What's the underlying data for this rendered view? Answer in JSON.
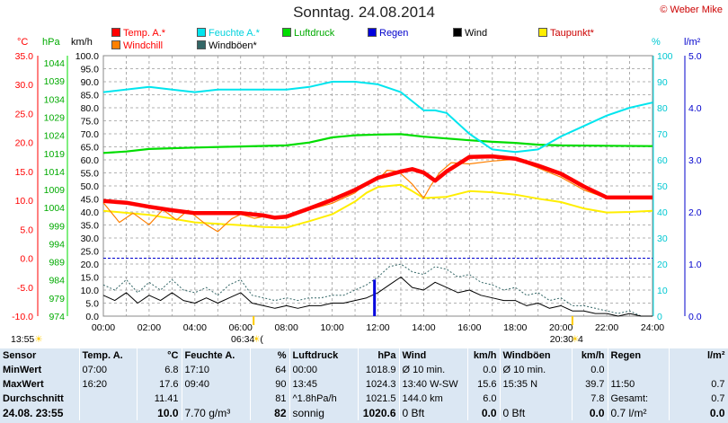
{
  "header": {
    "title": "Sonntag. 24.08.2014",
    "copyright": "© Weber Mike"
  },
  "legend": [
    {
      "label": "Temp. A.*",
      "color": "#ff0000"
    },
    {
      "label": "Feuchte A.*",
      "color": "#00e5ee"
    },
    {
      "label": "Luftdruck",
      "color": "#00dd00"
    },
    {
      "label": "Regen",
      "color": "#0000dd"
    },
    {
      "label": "Wind",
      "color": "#000000"
    },
    {
      "label": "Taupunkt*",
      "color": "#ffee00"
    },
    {
      "label": "Windchill",
      "color": "#ff8000"
    },
    {
      "label": "Windböen*",
      "color": "#336666"
    }
  ],
  "units": {
    "temp": "°C",
    "pressure": "hPa",
    "wind": "km/h",
    "humidity": "%",
    "rain": "l/m²"
  },
  "chart_data": {
    "type": "line",
    "x_ticks": [
      "00:00",
      "02:00",
      "04:00",
      "06:00",
      "08:00",
      "10:00",
      "12:00",
      "14:00",
      "16:00",
      "18:00",
      "20:00",
      "22:00",
      "24:00"
    ],
    "xlim": [
      "00:00",
      "24:00"
    ],
    "axes": {
      "temp": {
        "unit": "°C",
        "ylim": [
          -10,
          35
        ],
        "ticks": [
          "35.0",
          "30.0",
          "25.0",
          "20.0",
          "15.0",
          "10.0",
          "5.0",
          "0.0",
          "-5.0",
          "-10.0"
        ]
      },
      "pressure": {
        "unit": "hPa",
        "ylim": [
          974,
          1046
        ],
        "ticks": [
          "1044",
          "1039",
          "1034",
          "1029",
          "1024",
          "1019",
          "1014",
          "1009",
          "1004",
          "999",
          "994",
          "989",
          "984",
          "979",
          "974"
        ]
      },
      "wind": {
        "unit": "km/h",
        "ylim": [
          0,
          100
        ],
        "ticks": [
          "100.0",
          "95.0",
          "90.0",
          "85.0",
          "80.0",
          "75.0",
          "70.0",
          "65.0",
          "60.0",
          "55.0",
          "50.0",
          "45.0",
          "40.0",
          "35.0",
          "30.0",
          "25.0",
          "20.0",
          "15.0",
          "10.0",
          "5.0",
          "0.0"
        ]
      },
      "humidity": {
        "unit": "%",
        "ylim": [
          0,
          100
        ],
        "ticks": [
          "100",
          "90",
          "80",
          "70",
          "60",
          "50",
          "40",
          "30",
          "20",
          "10",
          "0"
        ]
      },
      "rain": {
        "unit": "l/m²",
        "ylim": [
          0,
          5
        ],
        "ticks": [
          "5.0",
          "4.0",
          "3.0",
          "2.0",
          "1.0",
          "0.0"
        ]
      }
    },
    "series": [
      {
        "name": "Temp. A.*",
        "axis": "temp",
        "color": "#ff0000",
        "x": [
          0,
          1,
          2,
          3,
          4,
          5,
          6,
          7,
          7.5,
          8,
          9,
          10,
          11,
          12,
          13,
          13.5,
          14,
          14.5,
          15,
          16,
          17,
          18,
          19,
          20,
          21,
          22,
          23,
          24
        ],
        "y": [
          9.9,
          9.6,
          8.9,
          8.3,
          7.8,
          7.8,
          7.8,
          7.4,
          7.0,
          7.2,
          8.6,
          10.1,
          11.8,
          13.9,
          15.0,
          15.4,
          14.8,
          13.4,
          15.0,
          17.5,
          17.6,
          17.2,
          16.0,
          14.6,
          12.4,
          10.5,
          10.5,
          10.5
        ]
      },
      {
        "name": "Windchill",
        "axis": "temp",
        "color": "#ff8000",
        "x": [
          0,
          0.7,
          1.3,
          2,
          2.6,
          3.2,
          3.7,
          4.5,
          5,
          5.6,
          6,
          6.6,
          7,
          8,
          9,
          10,
          11,
          11.5,
          12,
          12.4,
          12.9,
          13.5,
          14,
          14.3,
          14.7,
          15.2,
          16,
          17,
          18,
          19,
          20,
          21,
          22,
          23,
          24
        ],
        "y": [
          9.6,
          6.2,
          7.8,
          5.8,
          8.4,
          6.6,
          8.3,
          5.8,
          4.6,
          6.8,
          7.6,
          6.9,
          7.2,
          7.2,
          8.4,
          9.5,
          11.3,
          13.0,
          13.6,
          15.2,
          15.0,
          12.8,
          10.4,
          12.5,
          14.8,
          16.5,
          16.3,
          16.8,
          17.1,
          15.6,
          14.0,
          11.8,
          10.4,
          10.3,
          10.4
        ]
      },
      {
        "name": "Taupunkt*",
        "axis": "temp",
        "color": "#ffee00",
        "x": [
          0,
          2,
          4,
          6,
          7,
          8,
          9,
          10,
          11,
          11.5,
          12,
          13,
          13.5,
          14,
          15,
          16,
          17,
          18,
          19,
          20,
          21,
          22,
          23,
          24
        ],
        "y": [
          8.2,
          7.5,
          6.2,
          5.7,
          5.4,
          5.3,
          6.4,
          7.6,
          9.8,
          11.3,
          12.3,
          12.7,
          11.6,
          10.4,
          10.6,
          11.6,
          11.4,
          11.0,
          10.3,
          9.7,
          8.6,
          7.9,
          8.0,
          8.2
        ]
      },
      {
        "name": "Feuchte A.*",
        "axis": "humidity",
        "color": "#00e5ee",
        "x": [
          0,
          2,
          3,
          4,
          5,
          6,
          7,
          8,
          9,
          10,
          11,
          12,
          13,
          14,
          14.5,
          15,
          16,
          17,
          18,
          19,
          20,
          21,
          22,
          23,
          24
        ],
        "y": [
          86,
          88,
          87,
          86,
          87,
          87,
          87,
          87,
          88,
          90,
          90,
          89,
          86,
          79,
          79,
          78,
          70,
          64,
          63,
          64,
          69,
          73,
          77,
          80,
          82
        ]
      },
      {
        "name": "Luftdruck",
        "axis": "pressure",
        "color": "#00dd00",
        "x": [
          0,
          1,
          2,
          4,
          6,
          8,
          9,
          10,
          11,
          12,
          13,
          14,
          15,
          16,
          17,
          18,
          19,
          20,
          22,
          24
        ],
        "y": [
          1019.1,
          1019.5,
          1020.2,
          1020.6,
          1020.9,
          1021.2,
          1022.0,
          1023.4,
          1024.0,
          1024.2,
          1024.3,
          1023.6,
          1023.1,
          1022.6,
          1022.2,
          1021.9,
          1021.4,
          1021.2,
          1021.1,
          1021.0
        ]
      },
      {
        "name": "Wind",
        "axis": "wind",
        "color": "#000000",
        "x": [
          0,
          0.5,
          1,
          1.5,
          2,
          2.5,
          3,
          3.5,
          4,
          4.5,
          5,
          5.5,
          6,
          6.5,
          7,
          7.5,
          8,
          8.5,
          9,
          9.5,
          10,
          10.5,
          11,
          11.5,
          12,
          12.5,
          13,
          13.5,
          14,
          14.5,
          15,
          15.5,
          16,
          16.5,
          17,
          17.5,
          18,
          18.5,
          19,
          19.5,
          20,
          20.5,
          21,
          21.5,
          22,
          22.5,
          23,
          23.5,
          24
        ],
        "y": [
          8,
          6,
          9,
          5,
          8,
          6,
          9,
          6,
          5,
          7,
          5,
          7,
          9,
          5,
          4,
          3,
          4,
          3,
          4,
          4,
          5,
          5,
          6,
          7,
          9,
          12,
          15,
          11,
          10,
          13,
          11,
          9,
          10,
          8,
          7,
          6,
          6,
          4,
          5,
          3,
          4,
          2,
          2,
          1,
          1,
          0,
          1,
          0,
          0
        ]
      },
      {
        "name": "Windböen*",
        "axis": "wind",
        "color": "#336666",
        "x": [
          0,
          0.5,
          1,
          1.5,
          2,
          2.5,
          3,
          3.5,
          4,
          4.5,
          5,
          5.5,
          6,
          6.5,
          7,
          7.5,
          8,
          8.5,
          9,
          9.5,
          10,
          10.5,
          11,
          11.5,
          12,
          12.5,
          13,
          13.5,
          14,
          14.5,
          15,
          15.5,
          16,
          16.5,
          17,
          17.5,
          18,
          18.5,
          19,
          19.5,
          20,
          20.5,
          21,
          21.5,
          22,
          22.5,
          23,
          23.5,
          24
        ],
        "y": [
          12,
          10,
          14,
          9,
          13,
          10,
          14,
          10,
          9,
          11,
          8,
          12,
          14,
          8,
          7,
          6,
          7,
          6,
          7,
          7,
          8,
          8,
          10,
          12,
          15,
          19,
          20,
          17,
          16,
          19,
          18,
          15,
          16,
          13,
          12,
          10,
          11,
          8,
          9,
          6,
          7,
          4,
          4,
          3,
          2,
          1,
          2,
          0,
          0
        ]
      },
      {
        "name": "Regen",
        "axis": "rain",
        "color": "#0000dd",
        "type": "bar",
        "x": [
          11.85
        ],
        "y": [
          0.7
        ]
      }
    ]
  },
  "sun": {
    "sunrise_label": "06:34",
    "sunset_label": "20:30",
    "sunrise_glyph": "☀",
    "sunset_glyph": "☀",
    "sunrise_sub": "(",
    "sunset_sub": "4",
    "left_time": "13:55"
  },
  "stats": {
    "header": [
      "Sensor",
      "Temp. A.",
      "°C",
      "Feuchte A.",
      "%",
      "Luftdruck",
      "hPa",
      "Wind",
      "km/h",
      "Windböen",
      "km/h",
      "Regen",
      "l/m²"
    ],
    "rows": [
      [
        "MinWert",
        "07:00",
        "6.8",
        "17:10",
        "64",
        "00:00",
        "1018.9",
        "Ø 10 min.",
        "0.0",
        "Ø 10 min.",
        "0.0",
        "",
        ""
      ],
      [
        "MaxWert",
        "16:20",
        "17.6",
        "09:40",
        "90",
        "13:45",
        "1024.3",
        "13:40    W-SW",
        "15.6",
        "15:35        N",
        "39.7",
        "11:50",
        "0.7"
      ],
      [
        "Durchschnitt",
        "",
        "11.41",
        "",
        "81",
        "^1.8hPa/h",
        "1021.5",
        "144.0 km",
        "6.0",
        "",
        "7.8",
        "Gesamt:",
        "0.7"
      ],
      [
        "24.08.  23:55",
        "",
        "10.0",
        "7.70 g/m³",
        "82",
        "sonnig",
        "1020.6",
        "0 Bft",
        "0.0",
        "0 Bft",
        "0.0",
        "0.7 l/m²",
        "0.0"
      ]
    ]
  }
}
